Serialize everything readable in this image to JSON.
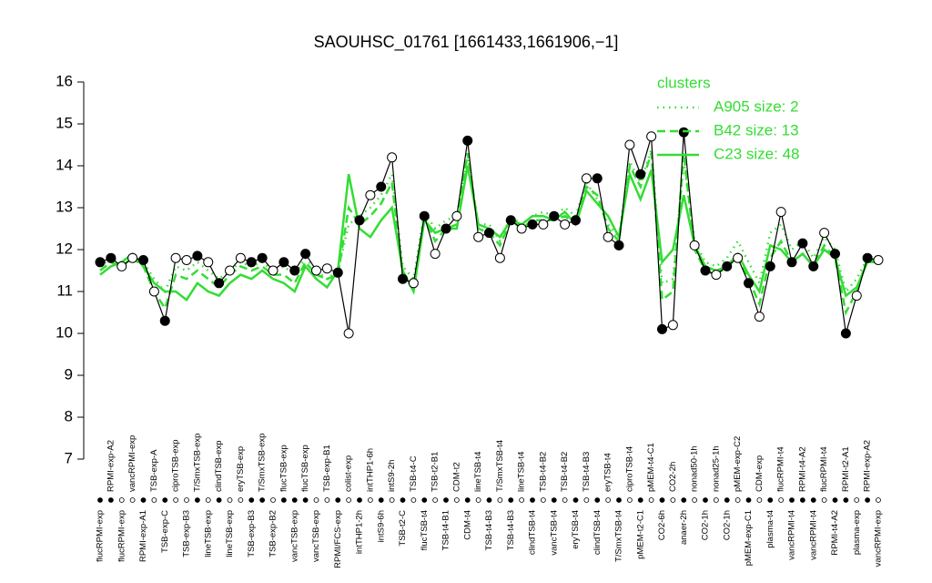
{
  "chart_data": {
    "type": "line",
    "title": "SAOUHSC_01761 [1661433,1661906,−1]",
    "categories": [
      "flucRPMI-exp",
      "RPMI-exp-A2",
      "flucRPMI-exp",
      "vancRPMI-exp",
      "RPMI-exp-A1",
      "TSB-exp-A",
      "TSB-exp-C",
      "ciproTSB-exp",
      "TSB-exp-B3",
      "T/SmxTSB-exp",
      "lineTSB-exp",
      "clindTSB-exp",
      "lineTSB-exp",
      "eryTSB-exp",
      "TSB-exp-B3",
      "T/SmxTSB-exp",
      "TSB-exp-B2",
      "flucTSB-exp",
      "vancTSB-exp",
      "flucTSB-exp",
      "vancTSB-exp",
      "TSB-exp-B1",
      "RPMI/FCS-exp",
      "colist-exp",
      "intTHP1-2h",
      "intTHP1-6h",
      "intS9-6h",
      "intS9-2h",
      "TSB-t2-C",
      "TSB-t4-C",
      "flucTSB-t4",
      "TSB-t2-B1",
      "TSB-t4-B1",
      "CDM-t2",
      "CDM-t4",
      "lineTSB-t4",
      "TSB-t4-B3",
      "T/SmxTSB-t4",
      "TSB-t4-B3",
      "lineTSB-t4",
      "clindTSB-t4",
      "TSB-t4-B2",
      "vancTSB-t4",
      "TSB-t4-B2",
      "eryTSB-t4",
      "TSB-t4-B3",
      "clindTSB-t4",
      "eryTSB-t4",
      "T/SmxTSB-t4",
      "ciproTSB-t4",
      "pMEM-t2-C1",
      "pMEM-t4-C1",
      "CO2-6h",
      "CO2-2h",
      "anaer-2h",
      "nonad50-1h",
      "CO2-1h",
      "nonad25-1h",
      "CO2-1h",
      "pMEM-exp-C2",
      "pMEM-exp-C1",
      "CDM-exp",
      "plasma-t4",
      "flucRPMI-t4",
      "vancRPMI-t4",
      "RPMI-t4-A2",
      "vancRPMI-t4",
      "flucRPMI-t4",
      "RPMI-t4-A2",
      "RPMI-t2-A1",
      "plasma-exp",
      "RPMI-exp-A2",
      "vancRPMI-exp"
    ],
    "series": [
      {
        "color": "#000000",
        "values": [
          11.7,
          11.8,
          11.6,
          11.8,
          11.75,
          11.0,
          10.3,
          11.8,
          11.75,
          11.85,
          11.7,
          11.2,
          11.5,
          11.8,
          11.7,
          11.8,
          11.5,
          11.7,
          11.5,
          11.9,
          11.5,
          11.55,
          11.45,
          10.0,
          12.7,
          13.3,
          13.5,
          14.2,
          11.3,
          11.2,
          12.8,
          11.9,
          12.5,
          12.8,
          14.6,
          12.3,
          12.4,
          11.8,
          12.7,
          12.5,
          12.6,
          12.6,
          12.8,
          12.6,
          12.7,
          13.7,
          13.7,
          12.3,
          12.1,
          14.5,
          13.8,
          14.7,
          10.1,
          10.2,
          14.8,
          12.1,
          11.5,
          11.4,
          11.6,
          11.8,
          11.2,
          10.4,
          11.6,
          12.9,
          11.7,
          12.15,
          11.6,
          12.4,
          11.9,
          10.0,
          10.9,
          11.8,
          11.75
        ],
        "point_fills": [
          "#000000",
          "#000000",
          "#ffffff",
          "#ffffff",
          "#000000",
          "#ffffff",
          "#000000",
          "#ffffff",
          "#ffffff",
          "#000000",
          "#ffffff",
          "#000000",
          "#ffffff",
          "#ffffff",
          "#000000",
          "#000000",
          "#ffffff",
          "#000000",
          "#000000",
          "#000000",
          "#ffffff",
          "#ffffff",
          "#000000",
          "#ffffff",
          "#000000",
          "#ffffff",
          "#000000",
          "#ffffff",
          "#000000",
          "#ffffff",
          "#000000",
          "#ffffff",
          "#000000",
          "#ffffff",
          "#000000",
          "#ffffff",
          "#000000",
          "#ffffff",
          "#000000",
          "#ffffff",
          "#000000",
          "#ffffff",
          "#000000",
          "#ffffff",
          "#000000",
          "#ffffff",
          "#000000",
          "#ffffff",
          "#000000",
          "#ffffff",
          "#000000",
          "#ffffff",
          "#000000",
          "#ffffff",
          "#000000",
          "#ffffff",
          "#000000",
          "#ffffff",
          "#000000",
          "#ffffff",
          "#000000",
          "#ffffff",
          "#000000",
          "#ffffff",
          "#000000",
          "#000000",
          "#000000",
          "#ffffff",
          "#000000",
          "#000000",
          "#ffffff",
          "#000000",
          "#ffffff"
        ]
      },
      {
        "name": "A905 size: 2",
        "color": "#33dd33",
        "dash": "dotted",
        "values": [
          11.6,
          11.8,
          11.7,
          11.9,
          11.7,
          11.3,
          11.0,
          11.6,
          11.5,
          11.7,
          11.5,
          11.3,
          11.5,
          11.7,
          11.6,
          11.7,
          11.5,
          11.6,
          11.4,
          11.8,
          11.5,
          11.3,
          11.5,
          12.6,
          12.8,
          13.0,
          13.3,
          13.8,
          11.6,
          11.3,
          12.9,
          12.5,
          12.7,
          12.8,
          14.2,
          12.6,
          12.6,
          12.2,
          12.8,
          12.6,
          12.8,
          12.9,
          12.8,
          13.0,
          12.8,
          13.6,
          13.2,
          12.6,
          12.3,
          14.1,
          13.6,
          14.4,
          11.2,
          11.3,
          14.1,
          12.2,
          11.7,
          11.6,
          11.8,
          12.2,
          11.7,
          11.2,
          12.4,
          12.6,
          12.0,
          12.2,
          11.8,
          12.3,
          12.0,
          11.0,
          11.3,
          11.8,
          11.8
        ]
      },
      {
        "name": "B42 size: 13",
        "color": "#33dd33",
        "dash": "dashed",
        "values": [
          11.5,
          11.7,
          11.6,
          11.8,
          11.6,
          11.0,
          10.6,
          11.4,
          11.3,
          11.5,
          11.3,
          11.1,
          11.4,
          11.6,
          11.5,
          11.6,
          11.4,
          11.4,
          11.2,
          11.7,
          11.4,
          11.3,
          11.4,
          13.0,
          12.6,
          12.8,
          13.1,
          13.6,
          11.4,
          11.1,
          12.8,
          12.2,
          12.5,
          12.6,
          14.3,
          12.5,
          12.4,
          12.1,
          12.7,
          12.5,
          12.7,
          12.7,
          12.7,
          12.8,
          12.6,
          13.5,
          13.3,
          12.5,
          12.2,
          14.0,
          13.5,
          14.3,
          10.8,
          11.0,
          14.3,
          12.0,
          11.5,
          11.4,
          11.6,
          11.8,
          11.3,
          10.7,
          11.8,
          12.2,
          11.7,
          11.9,
          11.6,
          12.1,
          11.8,
          10.5,
          11.0,
          11.8,
          11.7
        ]
      },
      {
        "name": "C23 size: 48",
        "color": "#33dd33",
        "dash": "solid",
        "values": [
          11.4,
          11.6,
          11.7,
          11.9,
          11.6,
          11.2,
          11.0,
          11.0,
          10.8,
          11.2,
          11.0,
          10.9,
          11.2,
          11.4,
          11.3,
          11.5,
          11.3,
          11.2,
          11.0,
          11.6,
          11.3,
          11.1,
          11.5,
          13.8,
          12.5,
          12.3,
          12.7,
          13.0,
          11.5,
          11.0,
          12.7,
          12.4,
          12.5,
          12.5,
          14.0,
          12.6,
          12.5,
          12.3,
          12.7,
          12.6,
          12.8,
          12.8,
          12.7,
          12.9,
          12.6,
          13.4,
          13.1,
          12.8,
          12.3,
          13.8,
          13.2,
          13.9,
          11.7,
          12.0,
          13.3,
          12.1,
          11.6,
          11.5,
          11.6,
          11.9,
          11.4,
          11.0,
          12.1,
          12.0,
          11.7,
          11.9,
          11.6,
          12.0,
          11.8,
          10.9,
          11.1,
          11.7,
          11.7
        ]
      }
    ],
    "ylim": [
      7,
      16
    ],
    "yticks": [
      7,
      8,
      9,
      10,
      11,
      12,
      13,
      14,
      15,
      16
    ],
    "legend_title": "clusters",
    "legend_color": "#33dd33",
    "legend": "topright"
  }
}
